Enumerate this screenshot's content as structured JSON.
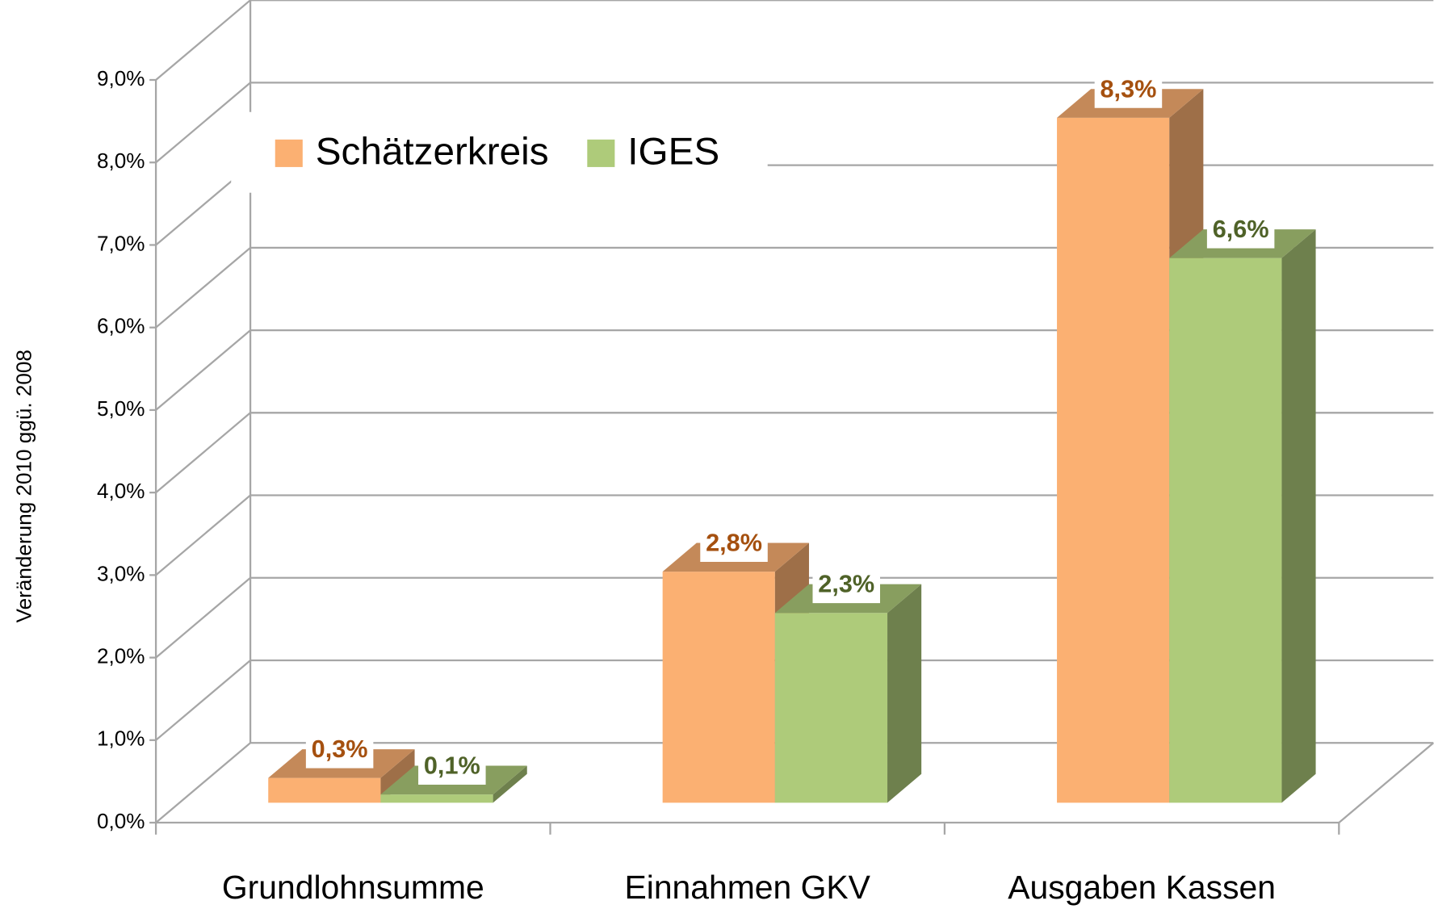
{
  "chart_data": {
    "type": "bar3d",
    "y_label": "Veränderung 2010 ggü. 2008",
    "categories": [
      "Grundlohnsumme",
      "Einnahmen GKV",
      "Ausgaben Kassen"
    ],
    "series": [
      {
        "name": "Schätzerkreis",
        "color": "#fbb072",
        "label_color": "#a5500f",
        "values": [
          0.3,
          2.8,
          8.3
        ],
        "value_labels": [
          "0,3%",
          "2,8%",
          "8,3%"
        ]
      },
      {
        "name": "IGES",
        "color": "#aecb7a",
        "label_color": "#4f6228",
        "values": [
          0.1,
          2.3,
          6.6
        ],
        "value_labels": [
          "0,1%",
          "2,3%",
          "6,6%"
        ]
      }
    ],
    "ylim": [
      0,
      9
    ],
    "yticks": [
      {
        "value": 0,
        "label": "0,0%"
      },
      {
        "value": 1,
        "label": "1,0%"
      },
      {
        "value": 2,
        "label": "2,0%"
      },
      {
        "value": 3,
        "label": "3,0%"
      },
      {
        "value": 4,
        "label": "4,0%"
      },
      {
        "value": 5,
        "label": "5,0%"
      },
      {
        "value": 6,
        "label": "6,0%"
      },
      {
        "value": 7,
        "label": "7,0%"
      },
      {
        "value": 8,
        "label": "8,0%"
      },
      {
        "value": 9,
        "label": "9,0%"
      }
    ],
    "grid": true,
    "legend": "upper left"
  }
}
